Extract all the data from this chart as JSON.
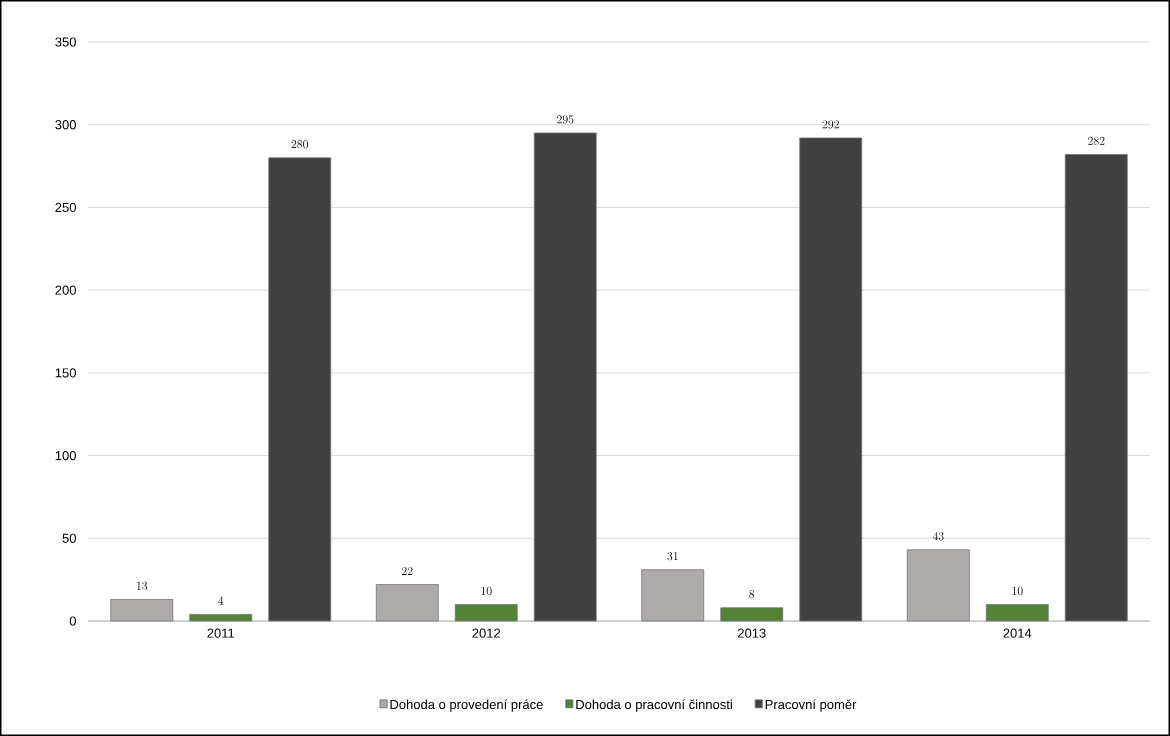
{
  "chart_data": {
    "type": "bar",
    "categories": [
      "2011",
      "2012",
      "2013",
      "2014"
    ],
    "series": [
      {
        "name": "Dohoda o provedení práce",
        "color": "#aeaaaa",
        "values": [
          13,
          22,
          31,
          43
        ]
      },
      {
        "name": "Dohoda o pracovní činnosti",
        "color": "#548235",
        "values": [
          4,
          10,
          8,
          10
        ]
      },
      {
        "name": "Pracovní poměr",
        "color": "#404040",
        "values": [
          280,
          295,
          292,
          282
        ]
      }
    ],
    "ylim": [
      0,
      350
    ],
    "yticks": [
      0,
      50,
      100,
      150,
      200,
      250,
      300,
      350
    ],
    "grid": "y",
    "legend": "bottom",
    "data_labels": true
  }
}
